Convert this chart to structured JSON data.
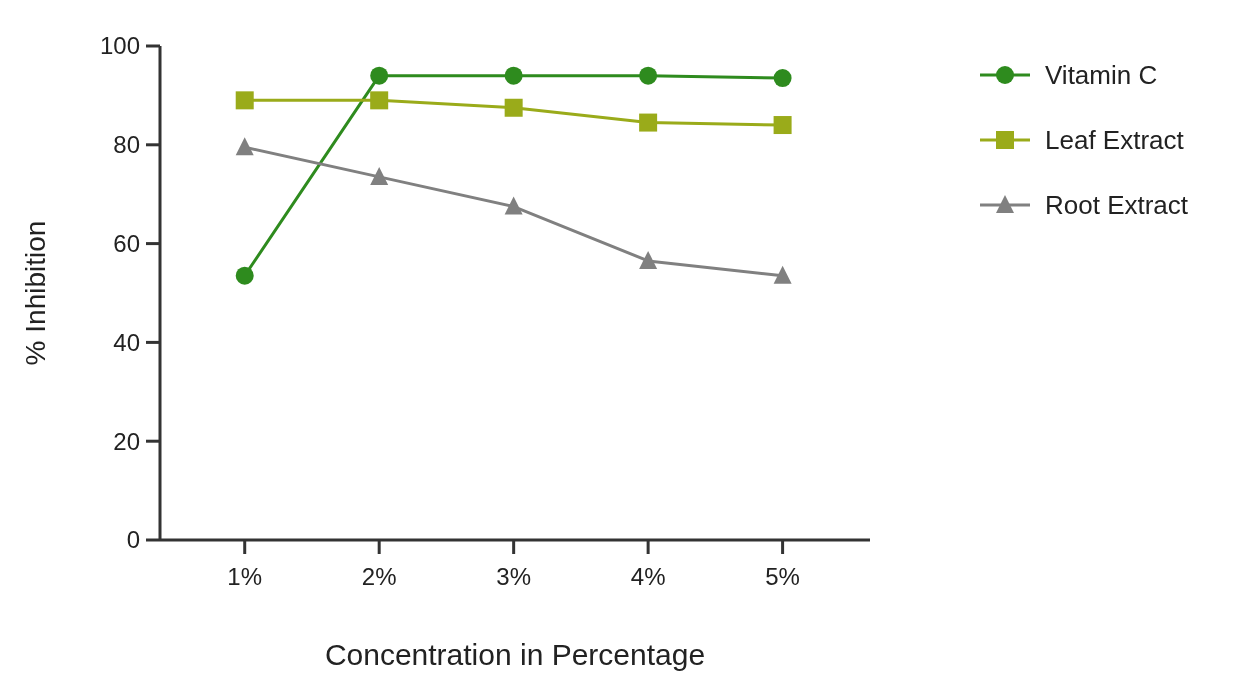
{
  "chart_data": {
    "type": "line",
    "xlabel": "Concentration in Percentage",
    "ylabel": "% Inhibition",
    "categories": [
      "1%",
      "2%",
      "3%",
      "4%",
      "5%"
    ],
    "ylim": [
      0,
      100
    ],
    "yticks": [
      0,
      20,
      40,
      60,
      80,
      100
    ],
    "grid": false,
    "legend": "right",
    "series": [
      {
        "name": "Vitamin C",
        "color": "#2e8b1e",
        "marker": "circle",
        "values": [
          53.5,
          94,
          94,
          94,
          93.5
        ]
      },
      {
        "name": "Leaf Extract",
        "color": "#9aab1a",
        "marker": "square",
        "values": [
          89,
          89,
          87.5,
          84.5,
          84
        ]
      },
      {
        "name": "Root Extract",
        "color": "#808080",
        "marker": "triangle",
        "values": [
          79.5,
          73.5,
          67.5,
          56.5,
          53.5
        ]
      }
    ]
  }
}
